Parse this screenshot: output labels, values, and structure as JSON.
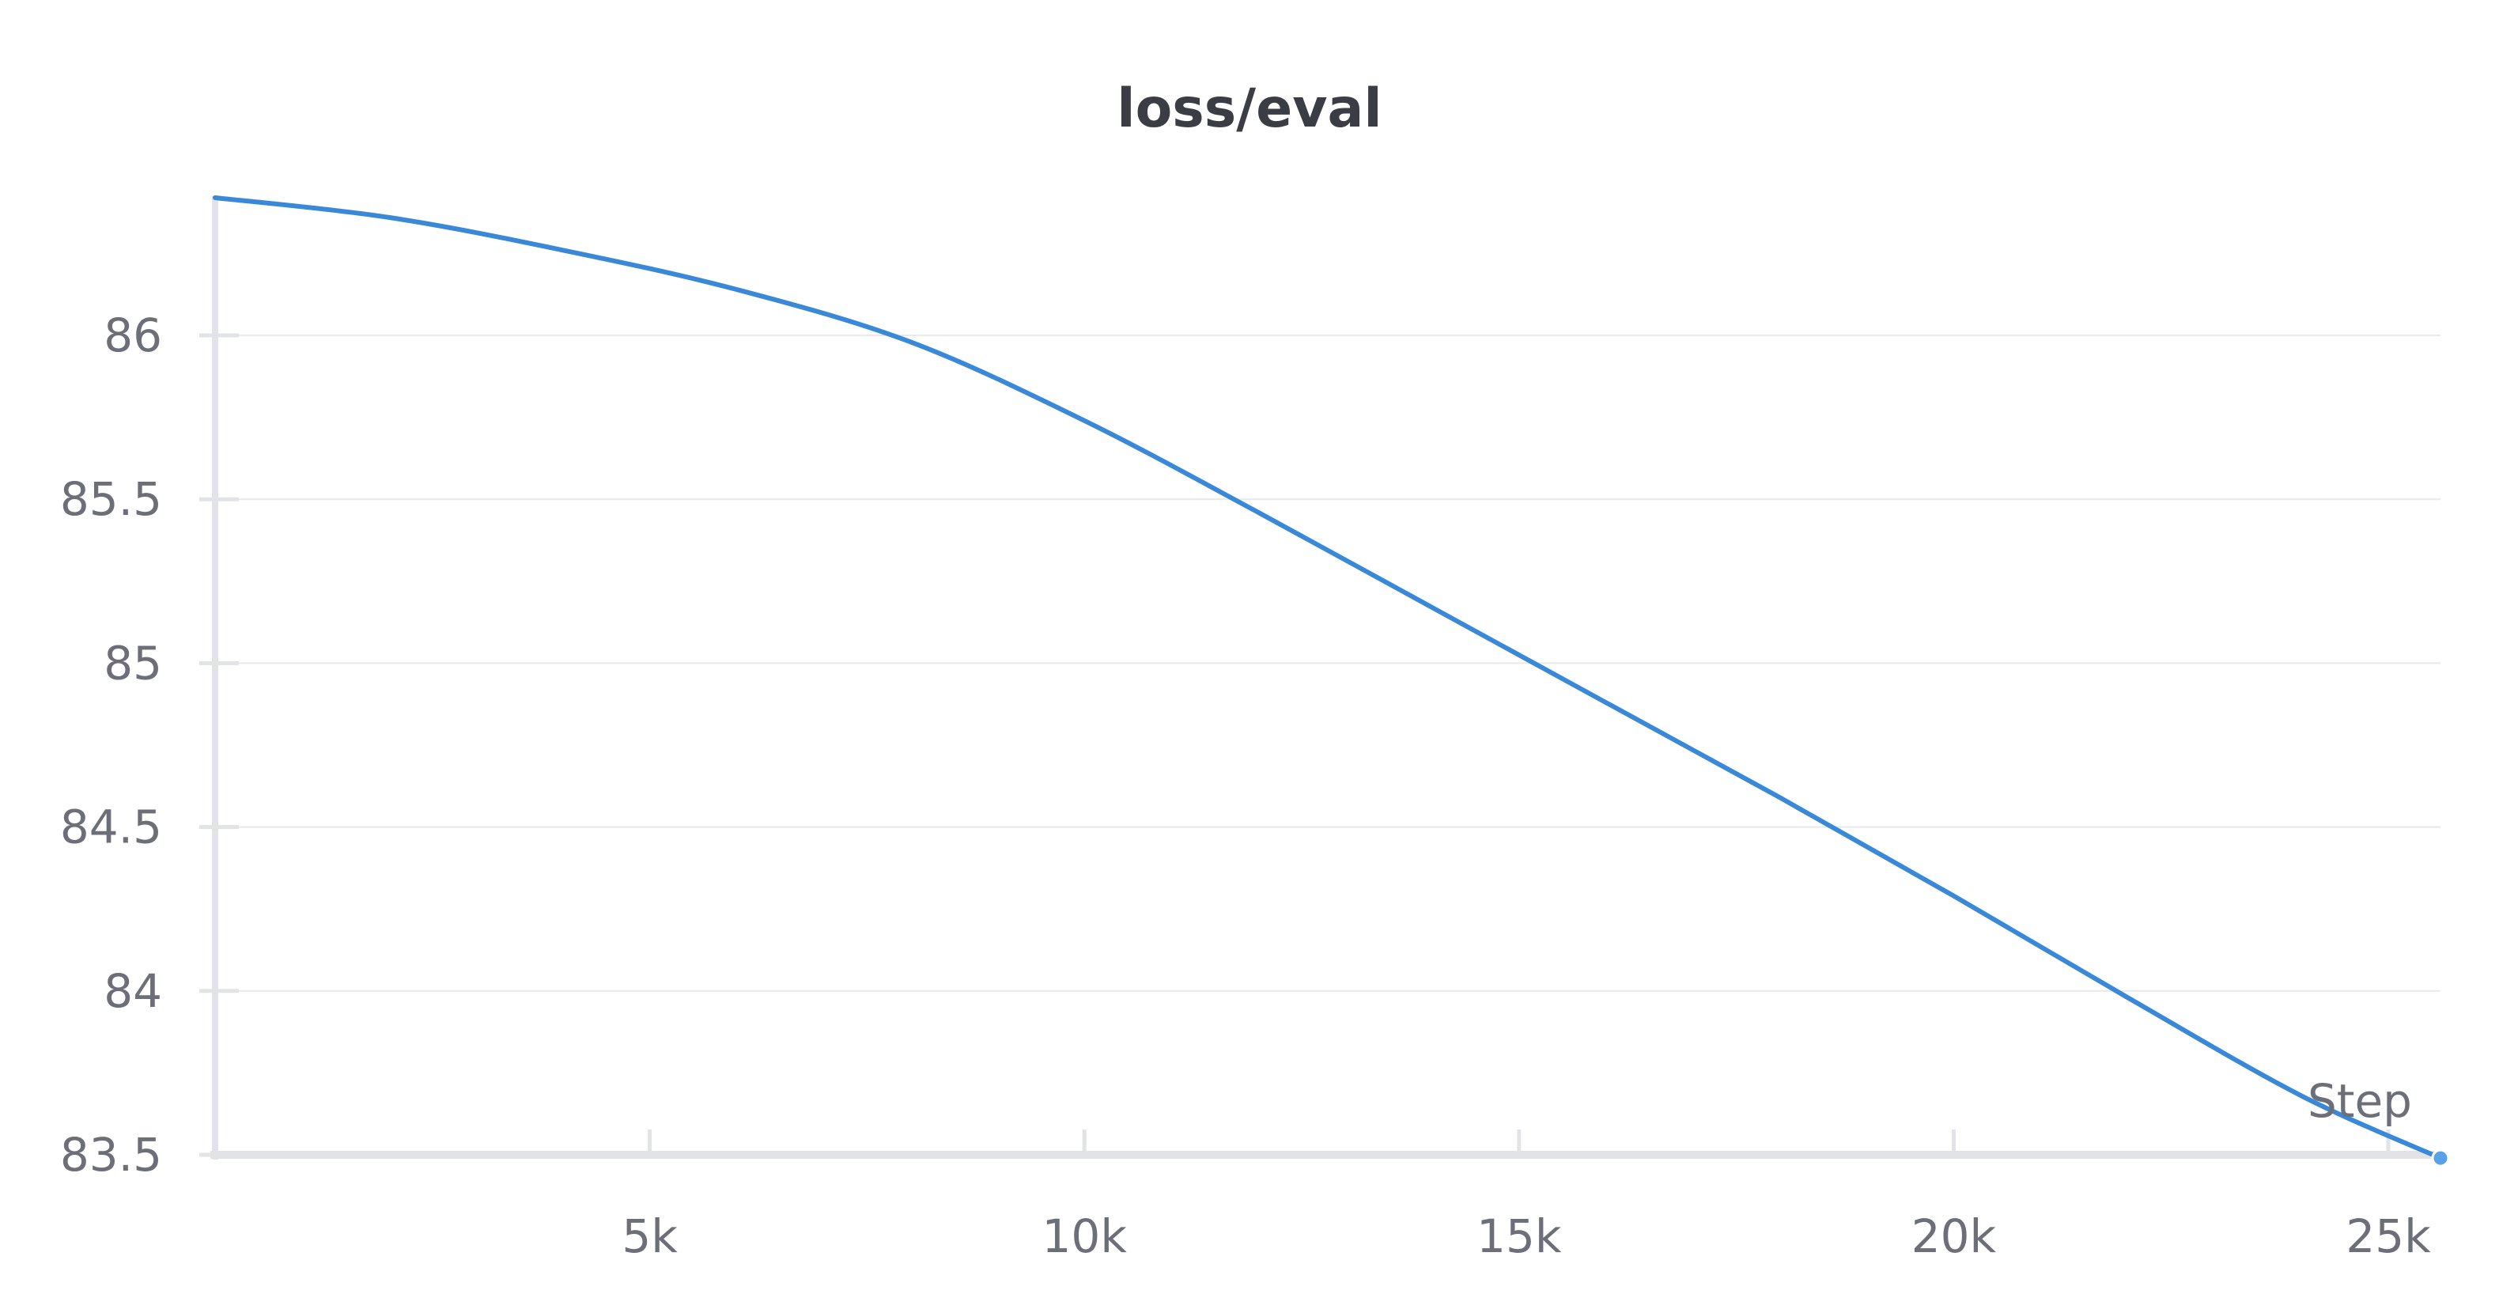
{
  "chart_data": {
    "type": "line",
    "title": "loss/eval",
    "xlabel": "Step",
    "ylabel": "",
    "xlim": [
      0,
      25600
    ],
    "ylim": [
      83.5,
      86.42
    ],
    "x_ticks": [
      5000,
      10000,
      15000,
      20000,
      25000
    ],
    "x_tick_labels": [
      "5k",
      "10k",
      "15k",
      "20k",
      "25k"
    ],
    "y_ticks": [
      83.5,
      84,
      84.5,
      85,
      85.5,
      86
    ],
    "y_tick_labels": [
      "83.5",
      "84",
      "84.5",
      "85",
      "85.5",
      "86"
    ],
    "grid": true,
    "legend": "none",
    "series": [
      {
        "color": "#3a89d8",
        "x": [
          0,
          2000,
          4000,
          6000,
          8000,
          10000,
          12000,
          14000,
          16000,
          18000,
          20000,
          22000,
          24000,
          25600
        ],
        "y": [
          86.42,
          86.36,
          86.26,
          86.14,
          85.98,
          85.74,
          85.46,
          85.17,
          84.88,
          84.59,
          84.29,
          83.98,
          83.68,
          83.49
        ]
      }
    ],
    "end_marker": true
  },
  "colors": {
    "axis": "#e2e3e6",
    "grid": "#e8e9eb",
    "line": "#3a89d8"
  }
}
